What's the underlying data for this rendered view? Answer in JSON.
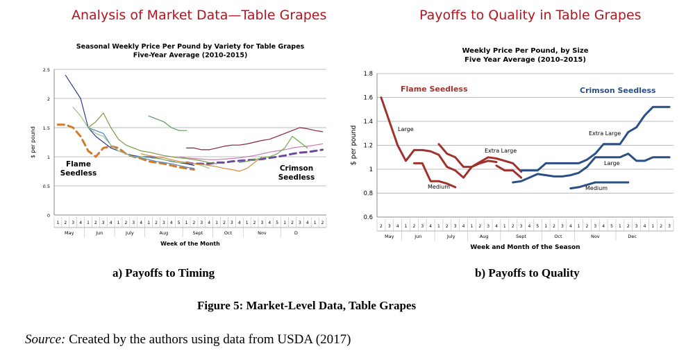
{
  "figure": {
    "heading_left": "Analysis of Market Data—Table Grapes",
    "heading_right": "Payoffs to Quality in Table Grapes",
    "caption_a": "a) Payoffs to Timing",
    "caption_b": "b) Payoffs to Quality",
    "figure_caption": "Figure  5: Market-Level Data, Table Grapes",
    "source_label": "Source:",
    "source_text": " Created by the authors using data from USDA (2017)"
  },
  "colors": {
    "flame": "#a0322d",
    "crimson": "#2a4e86",
    "grid": "#bdbdbd",
    "heading": "#b4141e"
  },
  "chart_data": [
    {
      "type": "line",
      "title": "Seasonal Weekly Price Per Pound by Variety for Table Grapes",
      "subtitle": "Five-Year Average (2010-2015)",
      "xlabel": "Week of the Month",
      "ylabel": "$ per pound",
      "ylim": [
        0,
        2.5
      ],
      "yticks": [
        "0",
        "0.5",
        "1",
        "1.5",
        "2",
        "2.5"
      ],
      "xtick_labels": [
        "1",
        "2",
        "3",
        "4",
        "1",
        "2",
        "3",
        "4",
        "1",
        "2",
        "3",
        "4",
        "1",
        "2",
        "3",
        "4",
        "5",
        "1",
        "2",
        "3",
        "4",
        "1",
        "2",
        "3",
        "4",
        "1",
        "2",
        "3",
        "4",
        "5",
        "1",
        "2",
        "3",
        "4",
        "1",
        "2"
      ],
      "months": [
        "May",
        "Jun",
        "July",
        "Aug",
        "Sept",
        "Oct",
        "Nov",
        "D"
      ],
      "grid": true,
      "annotations": [
        "Flame Seedless",
        "Crimson Seedless"
      ],
      "series": [
        {
          "name": "Flame Seedless",
          "style": "dashed",
          "color": "#d47a2c",
          "x": [
            0,
            1,
            2,
            3,
            4,
            5,
            6,
            7,
            8,
            9,
            10,
            11,
            12,
            13,
            14,
            15,
            16,
            17,
            18
          ],
          "values": [
            1.55,
            1.55,
            1.5,
            1.35,
            1.1,
            1.0,
            1.15,
            1.18,
            1.15,
            1.05,
            1.0,
            0.97,
            0.92,
            0.9,
            0.88,
            0.85,
            0.82,
            0.8,
            0.78
          ]
        },
        {
          "name": "Crimson Seedless",
          "style": "dashed",
          "color": "#6a4a9c",
          "x": [
            17,
            18,
            19,
            20,
            21,
            22,
            23,
            24,
            25,
            26,
            27,
            28,
            29,
            30,
            31,
            32,
            33,
            34,
            35
          ],
          "values": [
            0.9,
            0.88,
            0.88,
            0.88,
            0.9,
            0.9,
            0.92,
            0.93,
            0.94,
            0.95,
            0.96,
            0.98,
            1.0,
            1.02,
            1.05,
            1.07,
            1.08,
            1.1,
            1.12
          ]
        },
        {
          "name": "variety-blue",
          "style": "solid",
          "color": "#2e3a8c",
          "x": [
            1,
            2,
            3,
            4,
            5,
            6,
            7,
            8,
            9,
            10,
            11,
            12,
            13,
            14,
            15,
            16,
            17,
            18
          ],
          "values": [
            2.4,
            2.2,
            2.0,
            1.5,
            1.35,
            1.25,
            1.15,
            1.1,
            1.05,
            1.02,
            1.0,
            1.0,
            0.98,
            0.95,
            0.92,
            0.9,
            0.88,
            0.85
          ]
        },
        {
          "name": "variety-lightblue",
          "style": "solid",
          "color": "#4a86c8",
          "x": [
            4,
            5,
            6,
            7,
            8,
            9,
            10,
            11,
            12,
            13,
            14,
            15,
            16,
            17,
            18
          ],
          "values": [
            1.5,
            1.45,
            1.4,
            1.2,
            1.1,
            1.05,
            1.0,
            0.98,
            0.95,
            0.92,
            0.9,
            0.88,
            0.85,
            0.82,
            0.8
          ]
        },
        {
          "name": "variety-lightgreen",
          "style": "solid",
          "color": "#9ac08a",
          "x": [
            2,
            3,
            4,
            5,
            6,
            7,
            8,
            9,
            10,
            11,
            12,
            13,
            14,
            15,
            16,
            17,
            18,
            19,
            20
          ],
          "values": [
            1.85,
            1.7,
            1.5,
            1.4,
            1.35,
            1.2,
            1.1,
            1.05,
            1.0,
            1.0,
            0.98,
            0.97,
            0.95,
            0.93,
            0.9,
            0.9,
            0.88,
            0.85,
            0.8
          ]
        },
        {
          "name": "variety-olive",
          "style": "solid",
          "color": "#7a9a40",
          "x": [
            4,
            5,
            6,
            7,
            8,
            9,
            10,
            11,
            12,
            13,
            14,
            15,
            16,
            17,
            18,
            19,
            20,
            21
          ],
          "values": [
            1.5,
            1.6,
            1.75,
            1.5,
            1.3,
            1.2,
            1.15,
            1.1,
            1.08,
            1.05,
            1.02,
            1.0,
            0.98,
            0.97,
            0.95,
            0.93,
            0.9,
            0.88
          ]
        },
        {
          "name": "variety-green",
          "style": "solid",
          "color": "#5a9a5a",
          "x": [
            12,
            13,
            14,
            15,
            16,
            17
          ],
          "values": [
            1.7,
            1.65,
            1.6,
            1.5,
            1.45,
            1.45
          ]
        },
        {
          "name": "variety-orange",
          "style": "solid",
          "color": "#d48a3a",
          "x": [
            11,
            12,
            13,
            14,
            15,
            16,
            17,
            18,
            19,
            20,
            21,
            22,
            23,
            24,
            25,
            26,
            27
          ],
          "values": [
            1.05,
            1.02,
            1.0,
            0.98,
            0.95,
            0.92,
            0.9,
            0.88,
            0.87,
            0.85,
            0.83,
            0.8,
            0.78,
            0.75,
            0.8,
            0.9,
            1.0
          ]
        },
        {
          "name": "variety-maroon",
          "style": "solid",
          "color": "#8a1f3a",
          "x": [
            17,
            18,
            19,
            20,
            21,
            22,
            23,
            24,
            25,
            26,
            27,
            28,
            29,
            30,
            31,
            32,
            33,
            34,
            35
          ],
          "values": [
            1.15,
            1.15,
            1.12,
            1.12,
            1.15,
            1.18,
            1.2,
            1.2,
            1.22,
            1.25,
            1.28,
            1.3,
            1.35,
            1.4,
            1.45,
            1.5,
            1.48,
            1.45,
            1.43
          ]
        },
        {
          "name": "variety-pink",
          "style": "solid",
          "color": "#c87ab4",
          "x": [
            16,
            17,
            18,
            19,
            20,
            21,
            22,
            23,
            24,
            25,
            26,
            27,
            28,
            29,
            30,
            31,
            32,
            33,
            34,
            35
          ],
          "values": [
            1.0,
            0.98,
            0.97,
            0.96,
            0.95,
            0.95,
            0.96,
            0.97,
            0.98,
            1.0,
            1.02,
            1.05,
            1.08,
            1.1,
            1.12,
            1.15,
            1.17,
            1.18,
            1.2,
            1.22
          ]
        },
        {
          "name": "variety-green2",
          "style": "solid",
          "color": "#6aa84f",
          "x": [
            24,
            25,
            26,
            27,
            28,
            29,
            30,
            31,
            32,
            33
          ],
          "values": [
            0.9,
            0.92,
            0.95,
            0.98,
            1.0,
            1.05,
            1.15,
            1.35,
            1.25,
            1.15
          ]
        }
      ]
    },
    {
      "type": "line",
      "title": "Weekly Price Per Pound, by Size",
      "subtitle": "Five Year Average (2010–2015)",
      "xlabel": "Week and Month of the Season",
      "ylabel": "$ per pound",
      "ylim": [
        0.6,
        1.8
      ],
      "yticks": [
        "0.6",
        "0.8",
        "1",
        "1.2",
        "1.4",
        "1.6",
        "1.8"
      ],
      "xtick_labels": [
        "2",
        "3",
        "4",
        "1",
        "2",
        "3",
        "4",
        "1",
        "2",
        "3",
        "4",
        "1",
        "2",
        "3",
        "4",
        "1",
        "2",
        "3",
        "4",
        "5",
        "1",
        "2",
        "3",
        "4",
        "1",
        "2",
        "3",
        "4",
        "5",
        "1",
        "2",
        "3",
        "4",
        "1",
        "2",
        "3"
      ],
      "months": [
        "May",
        "Jun",
        "July",
        "Aug",
        "Sept",
        "Oct",
        "Nov",
        "Dec"
      ],
      "grid": true,
      "annotations": {
        "flame": "Flame Seedless",
        "crimson": "Crimson Seedless",
        "large_left": "Large",
        "extra_large_left": "Extra Large",
        "medium_left": "Medium",
        "extra_large_right": "Extra Large",
        "large_right": "Large",
        "medium_right": "Medium"
      },
      "series": [
        {
          "name": "Flame Seedless - Large",
          "color": "#a0322d",
          "x": [
            0,
            1,
            2,
            3,
            4,
            5,
            6,
            7,
            8,
            9,
            10,
            11,
            12,
            13,
            14
          ],
          "values": [
            1.6,
            1.4,
            1.2,
            1.07,
            1.16,
            1.16,
            1.15,
            1.12,
            1.02,
            0.99,
            0.93,
            1.02,
            1.05,
            1.07,
            1.06
          ]
        },
        {
          "name": "Flame Seedless - Extra Large",
          "color": "#a0322d",
          "x": [
            7,
            8,
            9,
            10,
            11,
            12,
            13,
            14,
            15,
            16,
            17
          ],
          "values": [
            1.21,
            1.13,
            1.1,
            1.02,
            1.02,
            1.06,
            1.1,
            1.09,
            1.07,
            1.05,
            0.98
          ]
        },
        {
          "name": "Flame Seedless - Medium",
          "color": "#a0322d",
          "x": [
            4,
            5,
            6,
            7,
            8,
            9,
            10,
            11,
            12,
            13,
            14,
            15,
            16,
            17
          ],
          "values": [
            1.05,
            1.05,
            0.9,
            0.9,
            0.88,
            0.85,
            null,
            null,
            null,
            null,
            1.03,
            0.99,
            0.99,
            0.93
          ]
        },
        {
          "name": "Crimson Seedless - Extra Large",
          "color": "#2a4e86",
          "x": [
            17,
            18,
            19,
            20,
            21,
            22,
            23,
            24,
            25,
            26,
            27,
            28,
            29,
            30,
            31,
            32,
            33,
            34,
            35
          ],
          "values": [
            0.99,
            0.99,
            0.99,
            1.05,
            1.05,
            1.05,
            1.05,
            1.05,
            1.08,
            1.13,
            1.21,
            1.21,
            1.21,
            1.31,
            1.35,
            1.45,
            1.52,
            1.52,
            1.52
          ]
        },
        {
          "name": "Crimson Seedless - Large",
          "color": "#2a4e86",
          "x": [
            16,
            17,
            18,
            19,
            20,
            21,
            22,
            23,
            24,
            25,
            26,
            27,
            28,
            29,
            30,
            31,
            32,
            33,
            34,
            35
          ],
          "values": [
            0.89,
            0.9,
            0.93,
            0.96,
            0.95,
            0.94,
            0.94,
            0.95,
            0.97,
            1.02,
            1.1,
            1.1,
            1.1,
            1.1,
            1.13,
            1.07,
            1.07,
            1.1,
            1.1,
            1.1
          ]
        },
        {
          "name": "Crimson Seedless - Medium",
          "color": "#2a4e86",
          "x": [
            23,
            24,
            25,
            26,
            27,
            28,
            29,
            30
          ],
          "values": [
            0.84,
            0.85,
            0.87,
            0.89,
            0.89,
            0.89,
            0.89,
            0.89
          ]
        }
      ]
    }
  ]
}
